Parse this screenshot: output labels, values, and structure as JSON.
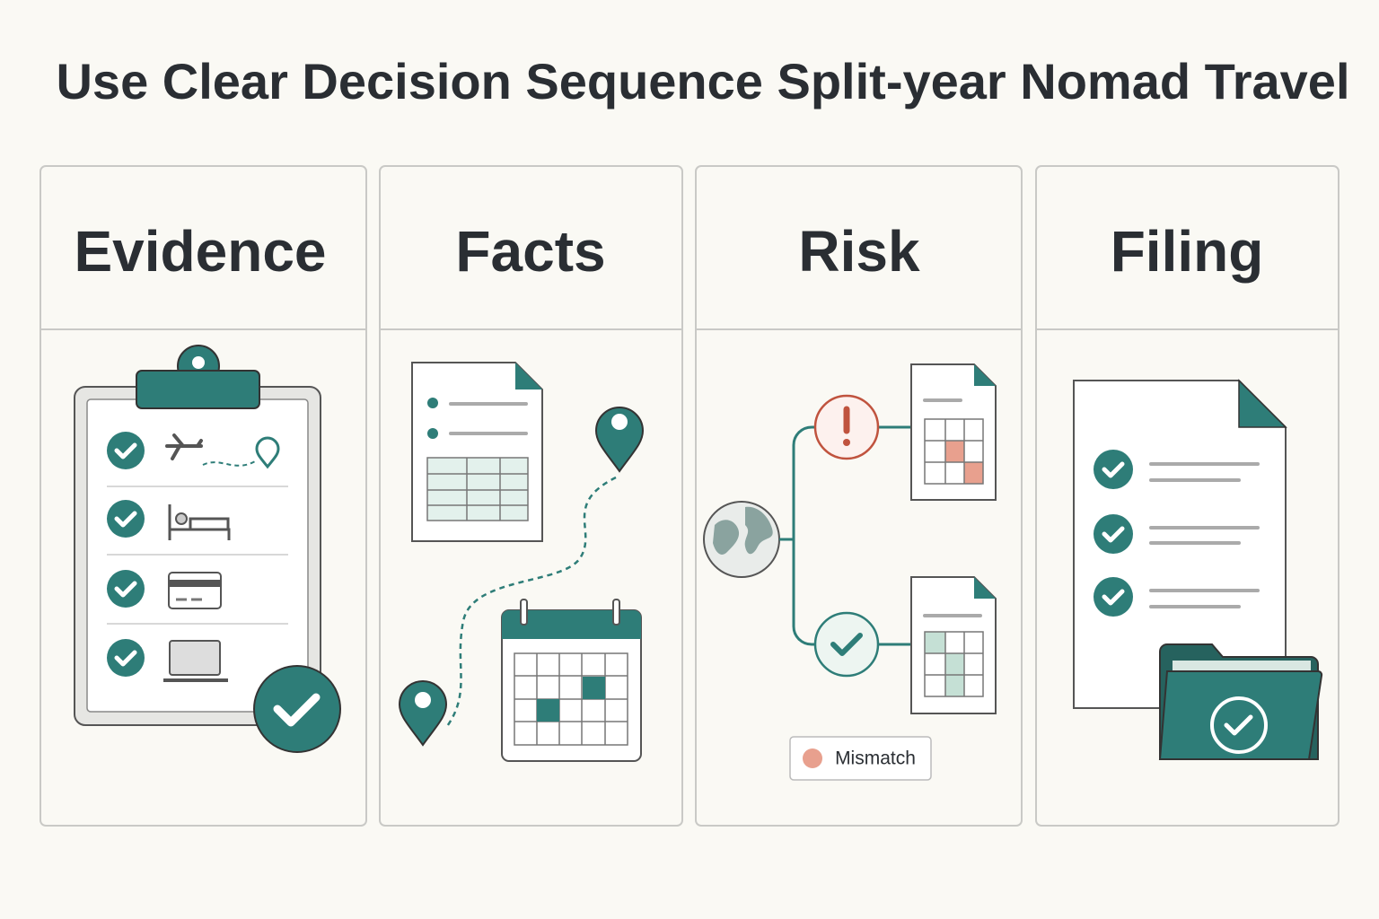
{
  "title": "Use Clear Decision Sequence Split-year Nomad Travel",
  "panels": [
    {
      "label": "Evidence"
    },
    {
      "label": "Facts"
    },
    {
      "label": "Risk"
    },
    {
      "label": "Filing"
    }
  ],
  "legend": {
    "label": "Mismatch"
  }
}
